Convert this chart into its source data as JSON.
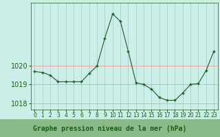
{
  "x": [
    0,
    1,
    2,
    3,
    4,
    5,
    6,
    7,
    8,
    9,
    10,
    11,
    12,
    13,
    14,
    15,
    16,
    17,
    18,
    19,
    20,
    21,
    22,
    23
  ],
  "y": [
    1019.7,
    1019.65,
    1019.5,
    1019.15,
    1019.15,
    1019.15,
    1019.15,
    1019.6,
    1020.0,
    1021.5,
    1022.8,
    1022.4,
    1020.8,
    1019.1,
    1019.0,
    1018.75,
    1018.3,
    1018.15,
    1018.15,
    1018.55,
    1019.0,
    1019.05,
    1019.75,
    1020.8
  ],
  "bg_color": "#cceee8",
  "line_color": "#1a5c1a",
  "marker_color": "#1a5c1a",
  "grid_h_color": "#ff9999",
  "grid_v_color": "#aacccc",
  "xlabel": "Graphe pression niveau de la mer (hPa)",
  "xlabel_color": "#1a5c1a",
  "xlabel_bg": "#88bb88",
  "yticks": [
    1018,
    1019,
    1020
  ],
  "ylim": [
    1017.65,
    1023.4
  ],
  "xlim": [
    -0.5,
    23.5
  ],
  "tick_color": "#1a5c1a",
  "xtick_fontsize": 5.5,
  "ytick_fontsize": 7
}
